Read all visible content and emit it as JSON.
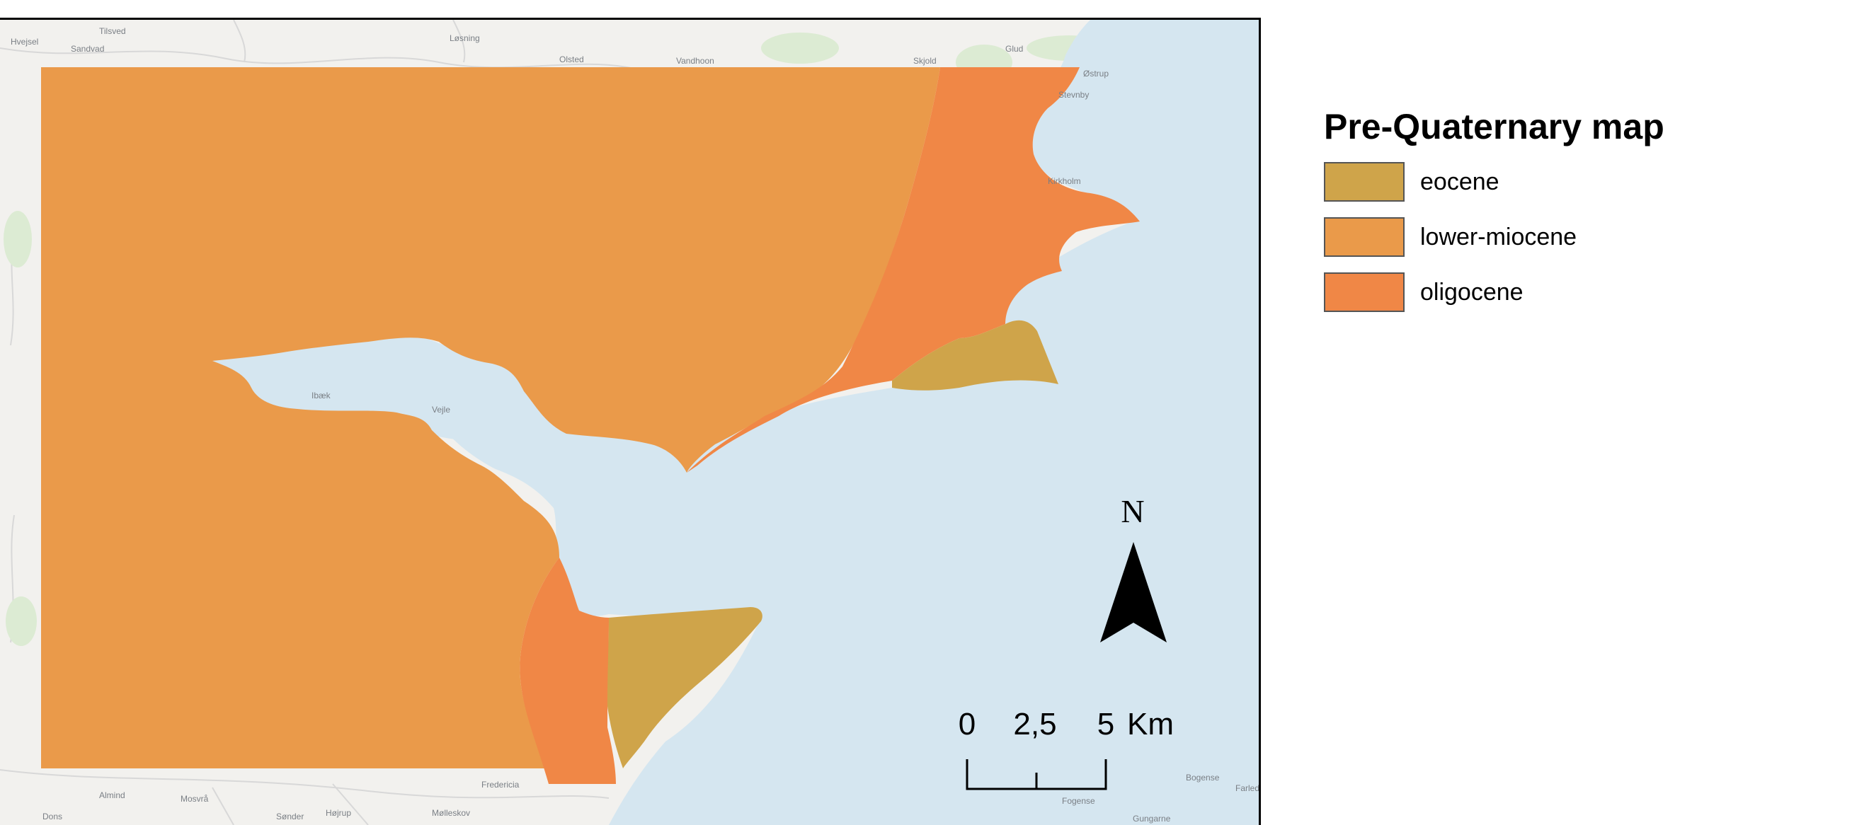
{
  "map": {
    "legend": {
      "title": "Pre-Quaternary map",
      "items": [
        {
          "label": "eocene",
          "color": "#cfa44a"
        },
        {
          "label": "lower-miocene",
          "color": "#ea9a4a"
        },
        {
          "label": "oligocene",
          "color": "#f08746"
        }
      ]
    },
    "north_arrow": {
      "label": "N",
      "icon": "north-arrow-icon"
    },
    "scale_bar": {
      "ticks": [
        "0",
        "2,5",
        "5"
      ],
      "unit": "Km"
    },
    "colors": {
      "water": "#d5e6f0",
      "land_basemap": "#f2f1ee",
      "eocene": "#cfa44a",
      "lower_miocene": "#ea9a4a",
      "oligocene": "#f08746"
    },
    "basemap_labels": [
      "Tilsved",
      "Hvejsel",
      "Sandvad",
      "Løsning",
      "Olsted",
      "Vandhoon",
      "Skjold",
      "Glud",
      "Østrup",
      "Kirkholm",
      "Stevnby",
      "Ibæk",
      "Vejle",
      "Almind",
      "Mosvrå",
      "Sønder",
      "Højrup",
      "Mølleskov",
      "Fredericia",
      "Bogense",
      "Fogense",
      "Gungarne",
      "Dons",
      "Farlede"
    ]
  }
}
